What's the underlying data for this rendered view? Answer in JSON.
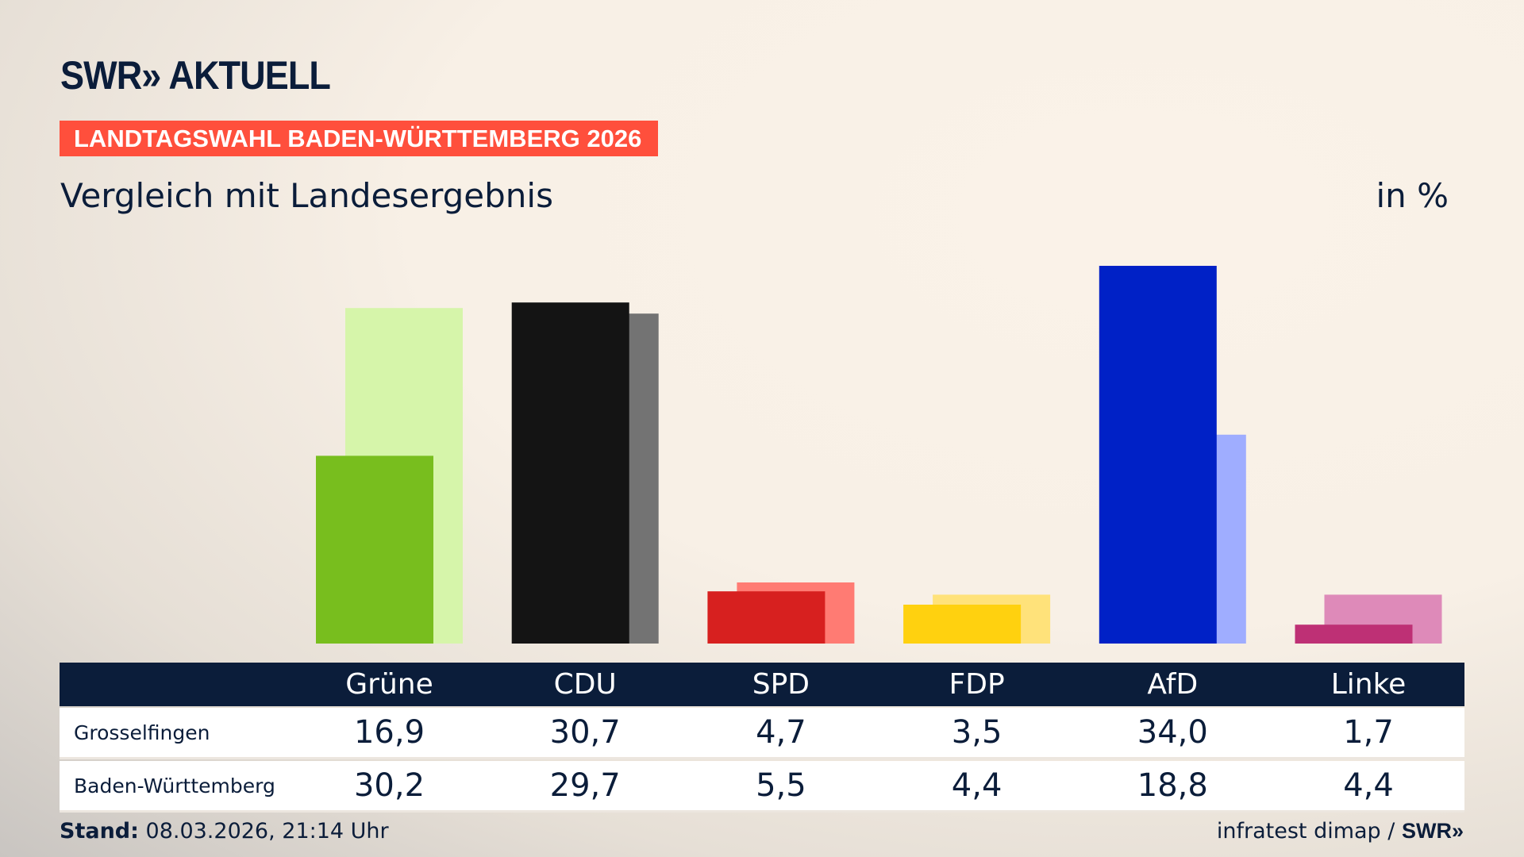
{
  "header": {
    "logo": "SWR» AKTUELL",
    "banner": "LANDTAGSWAHL BADEN-WÜRTTEMBERG 2026",
    "subtitle": "Vergleich mit Landesergebnis",
    "unit": "in %"
  },
  "chart_data": {
    "type": "bar",
    "categories": [
      "Grüne",
      "CDU",
      "SPD",
      "FDP",
      "AfD",
      "Linke"
    ],
    "series": [
      {
        "name": "Grosselfingen",
        "values": [
          16.9,
          30.7,
          4.7,
          3.5,
          34.0,
          1.7
        ],
        "display": [
          "16,9",
          "30,7",
          "4,7",
          "3,5",
          "34,0",
          "1,7"
        ]
      },
      {
        "name": "Baden-Württemberg",
        "values": [
          30.2,
          29.7,
          5.5,
          4.4,
          18.8,
          4.4
        ],
        "display": [
          "30,2",
          "29,7",
          "5,5",
          "4,4",
          "18,8",
          "4,4"
        ]
      }
    ],
    "colors": {
      "front": [
        "#78be1e",
        "#141414",
        "#d7201f",
        "#ffd10f",
        "#0021c6",
        "#be3075"
      ],
      "back": [
        "#d6f5aa",
        "#737373",
        "#ff7b73",
        "#ffe27a",
        "#9fadff",
        "#de8ab9"
      ]
    }
  },
  "footer": {
    "stand_label": "Stand:",
    "stand_value": "08.03.2026, 21:14 Uhr",
    "source": "infratest dimap /",
    "source_logo": "SWR»"
  }
}
